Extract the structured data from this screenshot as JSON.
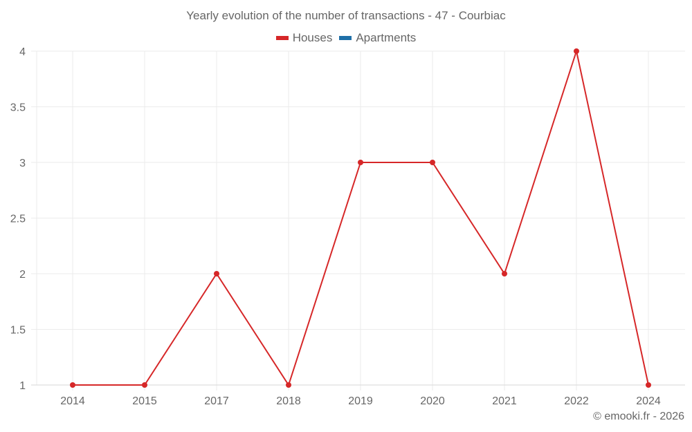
{
  "chart_data": {
    "type": "line",
    "title": "Yearly evolution of the number of transactions - 47 - Courbiac",
    "categories": [
      "2014",
      "2015",
      "2017",
      "2018",
      "2019",
      "2020",
      "2021",
      "2022",
      "2024"
    ],
    "series": [
      {
        "name": "Houses",
        "color": "#d62728",
        "values": [
          1,
          1,
          2,
          1,
          3,
          3,
          2,
          4,
          1
        ]
      },
      {
        "name": "Apartments",
        "color": "#1f6fa8",
        "values": []
      }
    ],
    "xlabel": "",
    "ylabel": "",
    "ylim": [
      1,
      4
    ],
    "yticks": [
      "1",
      "1.5",
      "2",
      "2.5",
      "3",
      "3.5",
      "4"
    ],
    "grid": true,
    "legend_position": "top"
  },
  "header": {
    "title": "Yearly evolution of the number of transactions - 47 - Courbiac"
  },
  "legend": {
    "items": [
      {
        "label": "Houses",
        "color": "#d62728"
      },
      {
        "label": "Apartments",
        "color": "#1f6fa8"
      }
    ]
  },
  "credit": "© emooki.fr - 2026"
}
